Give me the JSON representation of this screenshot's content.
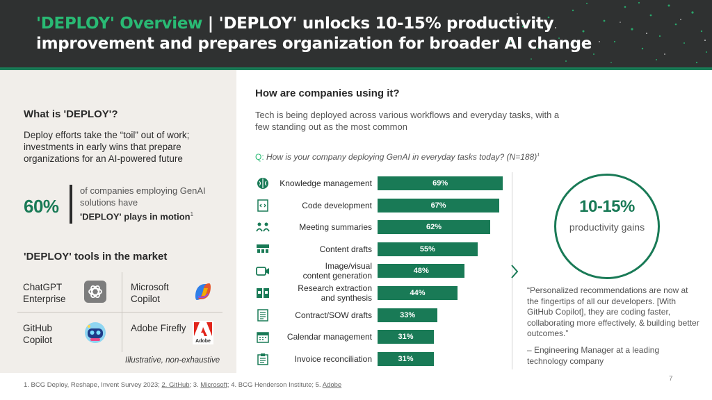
{
  "header": {
    "title_accent": "'DEPLOY' Overview",
    "title_sep": " | ",
    "title_main": "'DEPLOY' unlocks 10-15% productivity improvement and prepares organization for broader AI change"
  },
  "colors": {
    "brand_green": "#197a56",
    "accent_green": "#29ba74",
    "header_bg": "#2f3131",
    "panel_bg": "#f1eeea"
  },
  "left": {
    "what_title": "What is 'DEPLOY'?",
    "what_body": "Deploy efforts take the “toil” out of work; investments in early wins that prepare organizations for an AI-powered future",
    "stat_value": "60%",
    "stat_text_1": "of companies employing GenAI solutions have",
    "stat_text_bold": "'DEPLOY' plays in motion",
    "stat_sup": "1",
    "tools_title": "'DEPLOY' tools in the market",
    "tools": [
      {
        "name": "ChatGPT Enterprise",
        "icon": "openai-icon"
      },
      {
        "name": "Microsoft Copilot",
        "icon": "copilot-icon"
      },
      {
        "name": "GitHub Copilot",
        "icon": "github-copilot-icon"
      },
      {
        "name": "Adobe Firefly",
        "icon": "adobe-icon"
      }
    ],
    "adobe_logo_text": "Adobe",
    "tools_note": "Illustrative, non-exhaustive"
  },
  "right": {
    "how_title": "How are companies using it?",
    "how_sub": "Tech is being deployed across various workflows and everyday tasks, with a few standing out as the most common",
    "question_prefix": "Q:",
    "question_text": "How is your company deploying GenAI in everyday tasks today? (N=188)",
    "question_sup": "1",
    "circle_value": "10-15%",
    "circle_label": "productivity gains",
    "quote": "“Personalized recommendations are now at the fingertips of all our developers. [With GitHub Copilot], they are coding faster, collaborating more effectively, & building better outcomes.”",
    "quote_attr": "– Engineering Manager at a leading technology company"
  },
  "chart_data": {
    "type": "bar",
    "orientation": "horizontal",
    "title": "How is your company deploying GenAI in everyday tasks today? (N=188)",
    "categories": [
      "Knowledge management",
      "Code development",
      "Meeting summaries",
      "Content drafts",
      "Image/visual content generation",
      "Research extraction and synthesis",
      "Contract/SOW drafts",
      "Calendar management",
      "Invoice reconciliation"
    ],
    "values": [
      69,
      67,
      62,
      55,
      48,
      44,
      33,
      31,
      31
    ],
    "value_labels": [
      "69%",
      "67%",
      "62%",
      "55%",
      "48%",
      "44%",
      "33%",
      "31%",
      "31%"
    ],
    "icons": [
      "brain-icon",
      "code-icon",
      "meeting-icon",
      "content-icon",
      "camera-icon",
      "research-icon",
      "document-icon",
      "calendar-icon",
      "clipboard-icon"
    ],
    "unit": "%",
    "xlim": [
      0,
      70
    ]
  },
  "footnote": {
    "part1": "1. BCG Deploy, Reshape, Invent Survey 2023; ",
    "link2": "2. GitHub",
    "part2": "; 3. ",
    "link3": "Microsoft",
    "part3": "; 4. BCG Henderson Institute; 5. ",
    "link5": "Adobe"
  },
  "page_number": "7"
}
